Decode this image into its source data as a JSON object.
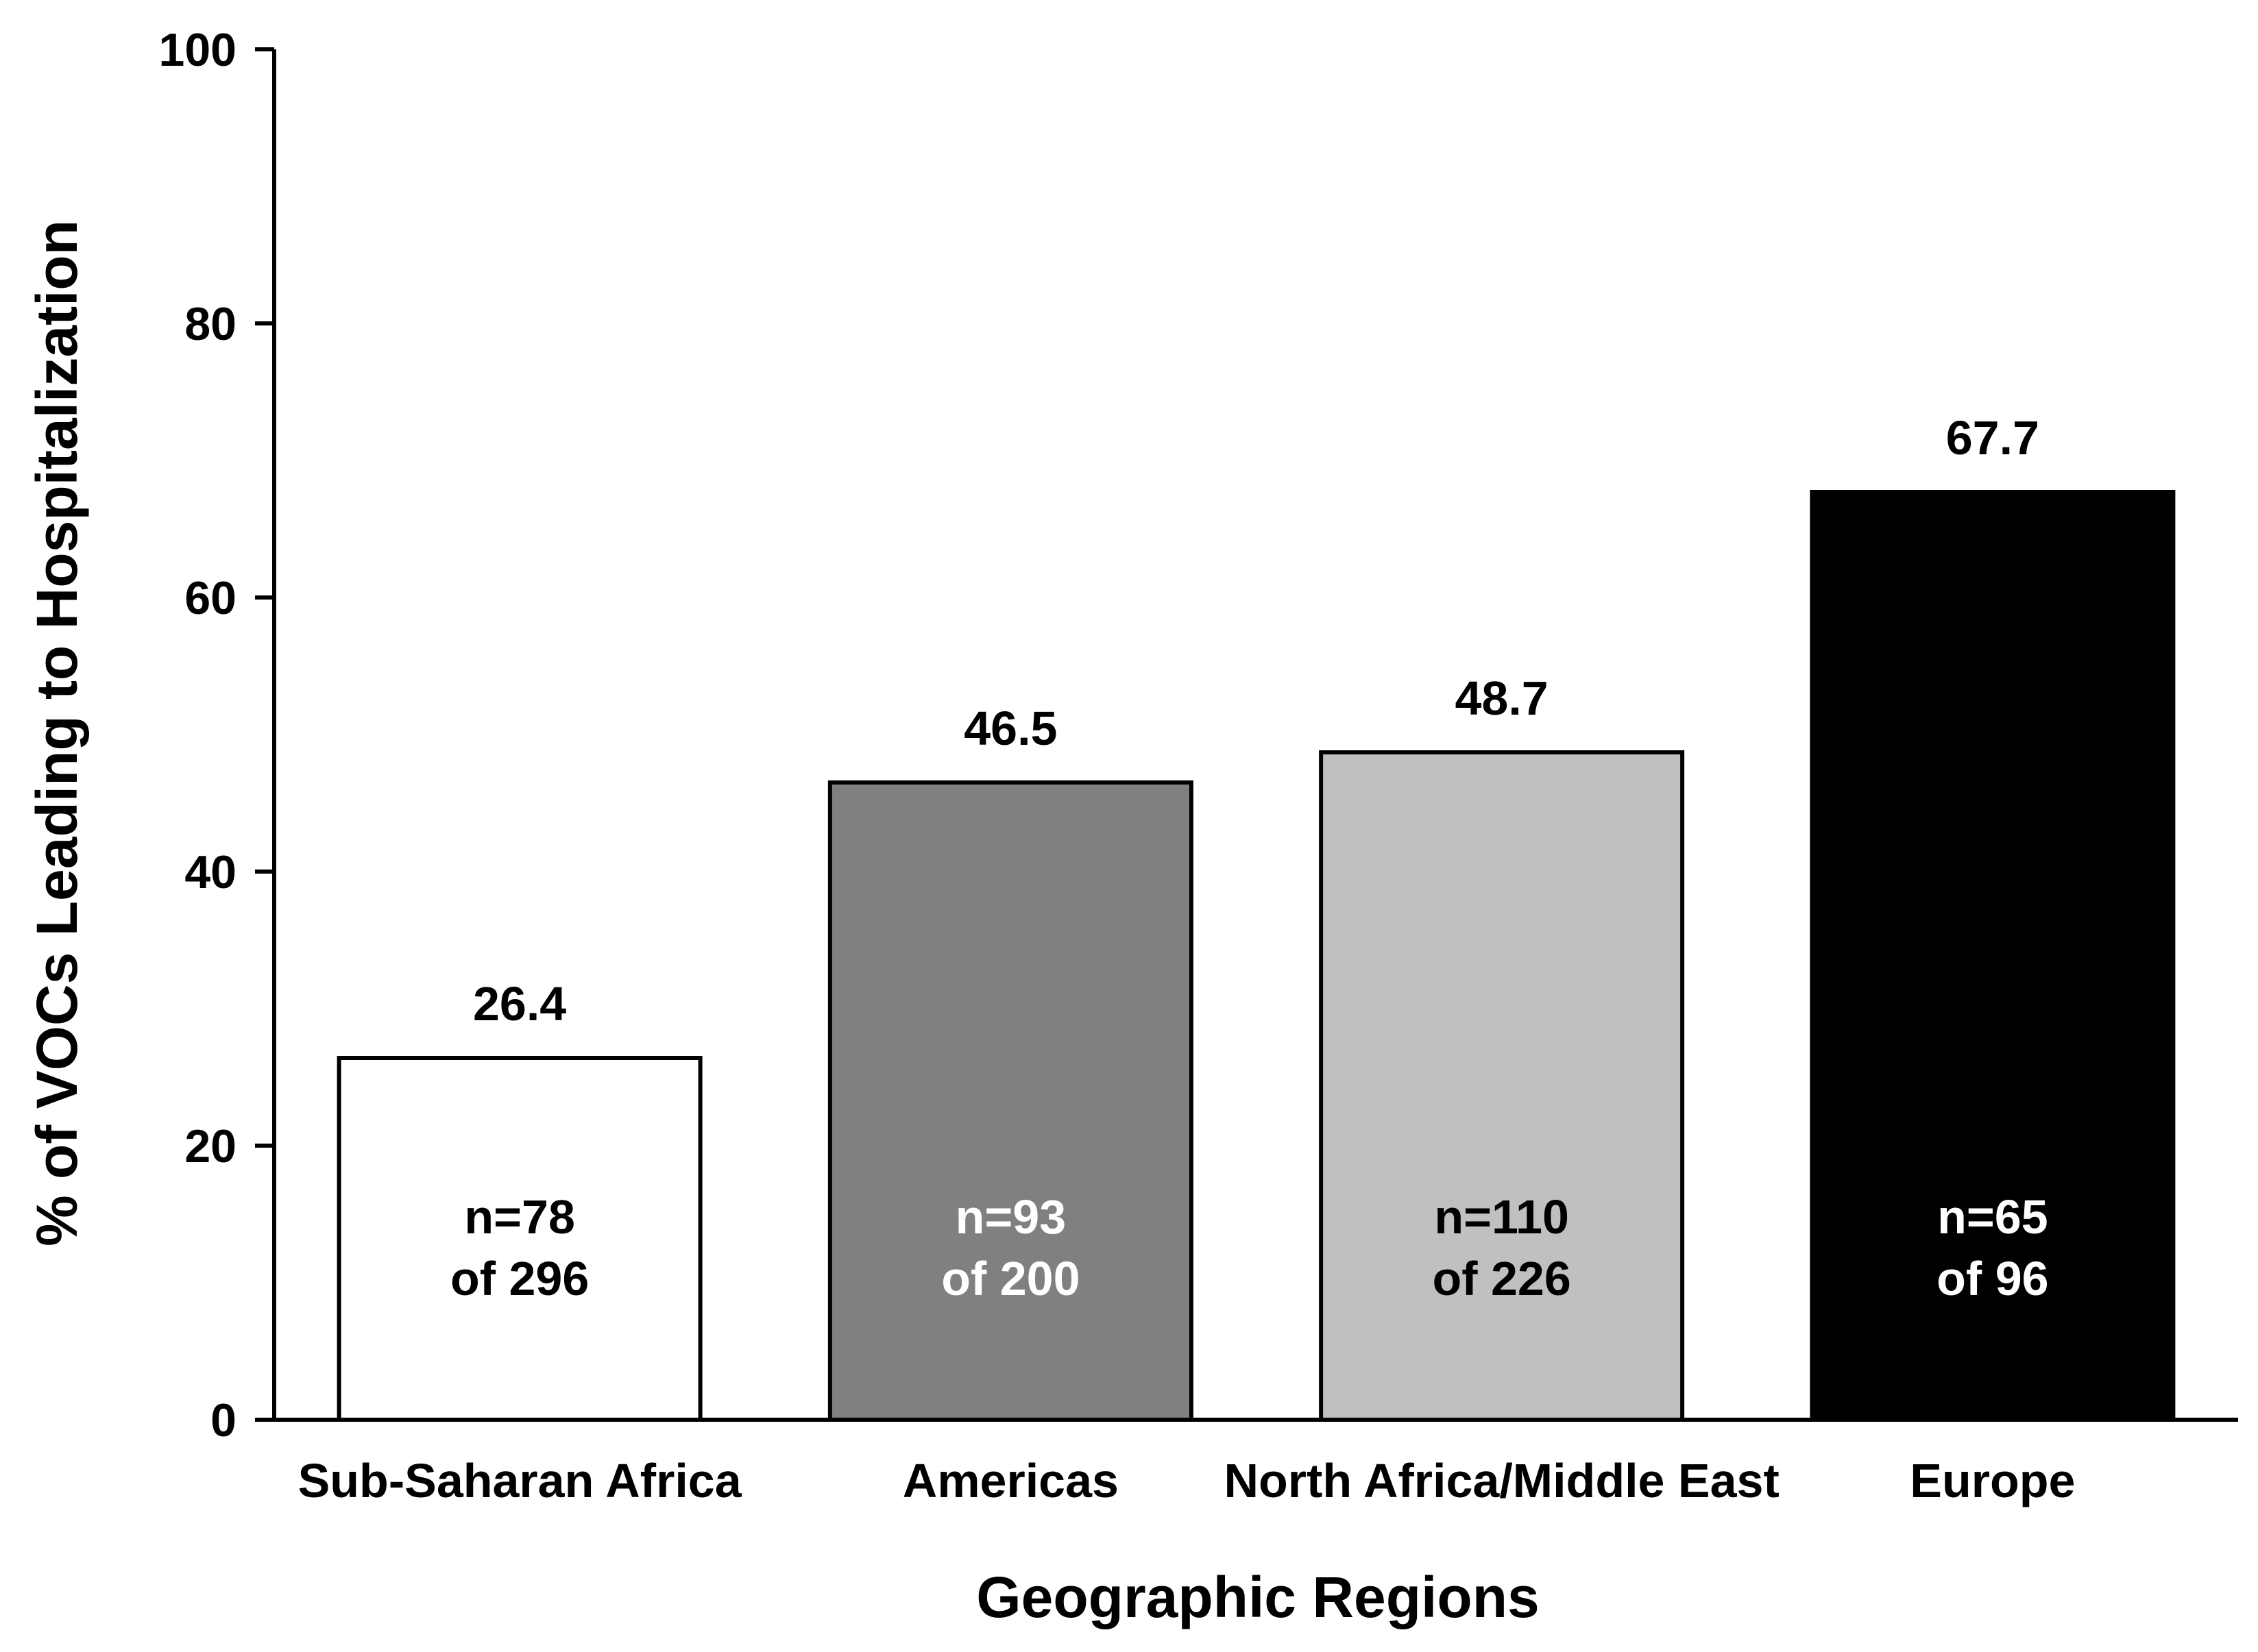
{
  "chart_data": {
    "type": "bar",
    "categories": [
      "Sub-Saharan Africa",
      "Americas",
      "North Africa/Middle East",
      "Europe"
    ],
    "values": [
      26.4,
      46.5,
      48.7,
      67.7
    ],
    "value_labels": [
      "26.4",
      "46.5",
      "48.7",
      "67.7"
    ],
    "n_labels": [
      [
        "n=78",
        "of 296"
      ],
      [
        "n=93",
        "of 200"
      ],
      [
        "n=110",
        "of 226"
      ],
      [
        "n=65",
        "of 96"
      ]
    ],
    "bar_colors": [
      "#ffffff",
      "#808080",
      "#c0c0c0",
      "#000000"
    ],
    "n_label_colors": [
      "#000000",
      "#ffffff",
      "#000000",
      "#ffffff"
    ],
    "xlabel": "Geographic Regions",
    "ylabel": "% of VOCs Leading to Hospitalization",
    "ylim": [
      0,
      100
    ],
    "yticks": [
      0,
      20,
      40,
      60,
      80,
      100
    ],
    "ytick_labels": [
      "0",
      "20",
      "40",
      "60",
      "80",
      "100"
    ],
    "grid": false,
    "legend": "none"
  }
}
